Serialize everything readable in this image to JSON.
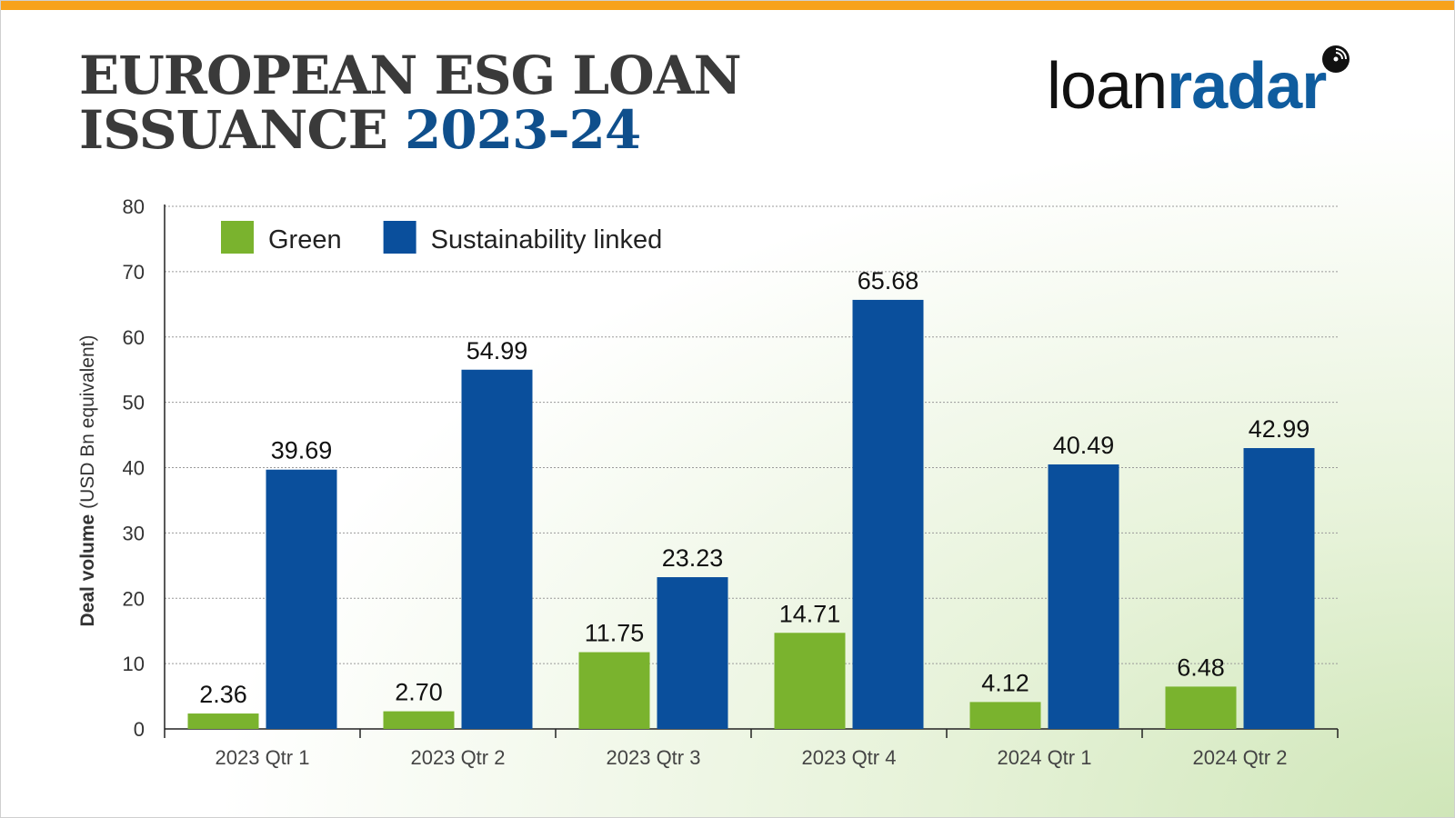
{
  "header": {
    "title_line1": "EUROPEAN ESG LOAN",
    "title_line2_prefix": "ISSUANCE",
    "title_line2_accent": "2023-24"
  },
  "logo": {
    "part1": "loan",
    "part2": "radar",
    "icon": "radar-icon"
  },
  "colors": {
    "accent_bar": "#f7a21b",
    "title_accent": "#0f4f8c",
    "green": "#7ab32e",
    "blue": "#0a4f9c"
  },
  "chart_data": {
    "type": "bar",
    "title": "",
    "xlabel": "",
    "ylabel_bold": "Deal volume",
    "ylabel_rest": "(USD Bn equivalent)",
    "ylim": [
      0,
      80
    ],
    "yticks": [
      0,
      10,
      20,
      30,
      40,
      50,
      60,
      70,
      80
    ],
    "grid": true,
    "legend_position": "top-left",
    "categories": [
      "2023 Qtr 1",
      "2023 Qtr 2",
      "2023 Qtr 3",
      "2023 Qtr 4",
      "2024 Qtr 1",
      "2024 Qtr 2"
    ],
    "series": [
      {
        "name": "Green",
        "color": "#7ab32e",
        "values": [
          2.36,
          2.7,
          11.75,
          14.71,
          4.12,
          6.48
        ],
        "labels": [
          "2.36",
          "2.70",
          "11.75",
          "14.71",
          "4.12",
          "6.48"
        ]
      },
      {
        "name": "Sustainability linked",
        "color": "#0a4f9c",
        "values": [
          39.69,
          54.99,
          23.23,
          65.68,
          40.49,
          42.99
        ],
        "labels": [
          "39.69",
          "54.99",
          "23.23",
          "65.68",
          "40.49",
          "42.99"
        ]
      }
    ]
  }
}
